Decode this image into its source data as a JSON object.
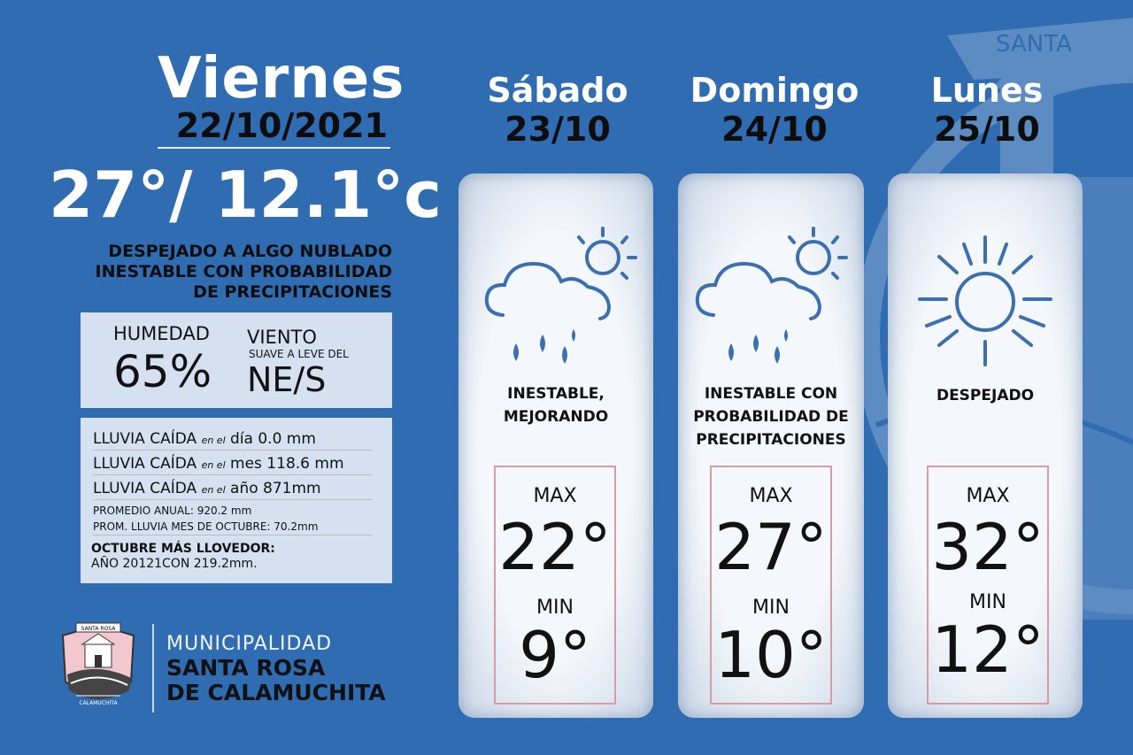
{
  "today": {
    "day": "Viernes",
    "date": "22/10/2021",
    "temp": "27°/ 12.1°c",
    "description": [
      "DESPEJADO A ALGO NUBLADO",
      "INESTABLE CON PROBABILIDAD",
      "DE PRECIPITACIONES"
    ]
  },
  "humidity": {
    "label": "HUMEDAD",
    "value": "65%"
  },
  "wind": {
    "label": "VIENTO",
    "sub": "SUAVE A LEVE DEL",
    "direction": "NE/S"
  },
  "rain": {
    "rows": [
      {
        "a": "LLUVIA CAÍDA",
        "b": "en el",
        "c": "día 0.0 mm"
      },
      {
        "a": "LLUVIA CAÍDA",
        "b": "en el",
        "c": "mes 118.6 mm"
      },
      {
        "a": "LLUVIA CAÍDA",
        "b": "en el",
        "c": "año 871mm"
      }
    ],
    "promedio": "PROMEDIO ANUAL: 920.2 mm",
    "prom_mes": "PROM. LLUVIA MES DE OCTUBRE: 70.2mm",
    "rainiest_title": "OCTUBRE MÁS LLOVEDOR:",
    "rainiest_detail": "AÑO 20121CON 219.2mm."
  },
  "logo": {
    "line1": "MUNICIPALIDAD",
    "line2": "SANTA ROSA",
    "line3": "DE CALAMUCHITA",
    "emblem_top": "SANTA ROSA",
    "emblem_bottom": "CALAMUCHITA",
    "watermark_text": "SANTA"
  },
  "forecast": [
    {
      "day": "Sábado",
      "date": "23/10",
      "icon": "rain-cloud-sun-icon",
      "description": [
        "INESTABLE,",
        "MEJORANDO"
      ],
      "max_label": "MAX",
      "max": "22°",
      "min_label": "MIN",
      "min": "9°"
    },
    {
      "day": "Domingo",
      "date": "24/10",
      "icon": "rain-cloud-sun-icon",
      "description": [
        "INESTABLE CON",
        "PROBABILIDAD DE",
        "PRECIPITACIONES"
      ],
      "max_label": "MAX",
      "max": "27°",
      "min_label": "MIN",
      "min": "10°"
    },
    {
      "day": "Lunes",
      "date": "25/10",
      "icon": "sun-icon",
      "description": [
        "DESPEJADO"
      ],
      "max_label": "MAX",
      "max": "32°",
      "min_label": "MIN",
      "min": "12°"
    }
  ],
  "colors": {
    "background": "#2f6cb1",
    "card": "#eef3f9",
    "box_border": "#d99aa5",
    "icon": "#3a6fb0"
  }
}
